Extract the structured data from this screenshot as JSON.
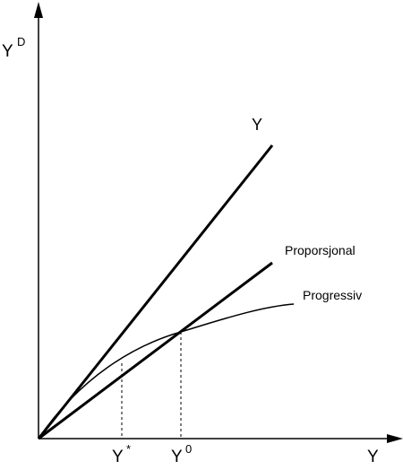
{
  "diagram": {
    "y_axis_label": {
      "base": "Y",
      "superscript": "D"
    },
    "x_axis_label": "Y",
    "lines": [
      {
        "id": "y_line",
        "label": "Y"
      },
      {
        "id": "proportional",
        "label": "Proporsjonal"
      },
      {
        "id": "progressive",
        "label": "Progressiv"
      }
    ],
    "x_markers": [
      {
        "id": "y_star",
        "base": "Y",
        "superscript": "*"
      },
      {
        "id": "y_zero",
        "base": "Y",
        "superscript": "0"
      }
    ],
    "colors": {
      "ink": "#000000",
      "background": "#ffffff"
    }
  }
}
